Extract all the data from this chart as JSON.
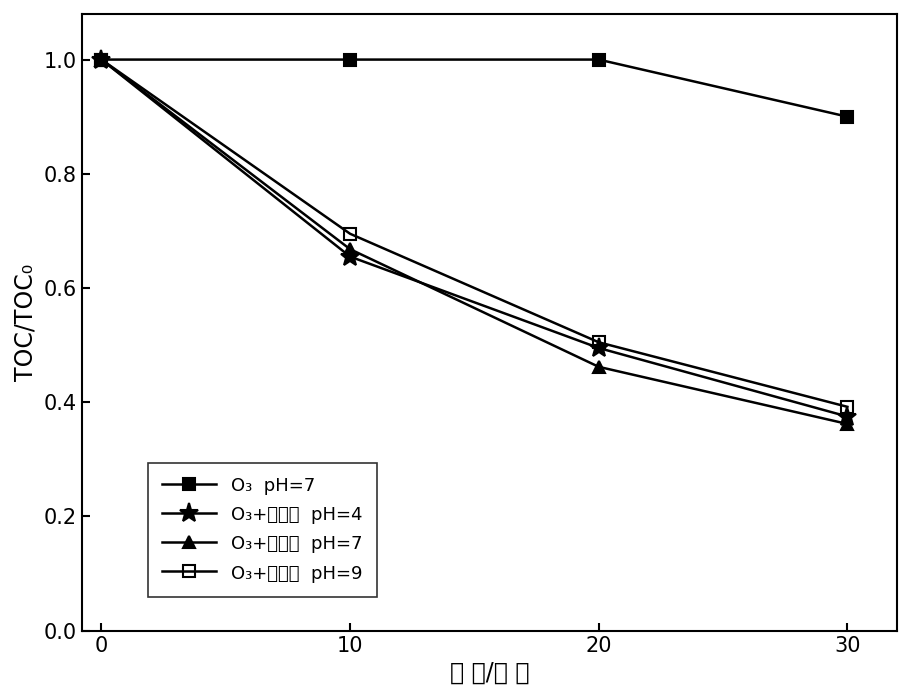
{
  "x": [
    0,
    10,
    20,
    30
  ],
  "series": [
    {
      "label_parts": [
        "O",
        "3",
        "  pH=7"
      ],
      "y": [
        1.0,
        1.0,
        1.0,
        0.9
      ],
      "marker": "s",
      "marker_size": 9,
      "color": "#000000",
      "linestyle": "-",
      "linewidth": 1.8,
      "fillstyle": "full"
    },
    {
      "label_parts": [
        "O",
        "3",
        "+催化剂  pH=4"
      ],
      "y": [
        1.0,
        0.655,
        0.495,
        0.375
      ],
      "marker": "*",
      "marker_size": 14,
      "color": "#000000",
      "linestyle": "-",
      "linewidth": 1.8,
      "fillstyle": "full"
    },
    {
      "label_parts": [
        "O",
        "3",
        "+催化剂  pH=7"
      ],
      "y": [
        1.0,
        0.668,
        0.462,
        0.362
      ],
      "marker": "^",
      "marker_size": 9,
      "color": "#000000",
      "linestyle": "-",
      "linewidth": 1.8,
      "fillstyle": "full"
    },
    {
      "label_parts": [
        "O",
        "3",
        "+催化剂  pH=9"
      ],
      "y": [
        1.0,
        0.695,
        0.505,
        0.392
      ],
      "marker": "s",
      "marker_size": 9,
      "color": "#000000",
      "linestyle": "-",
      "linewidth": 1.8,
      "fillstyle": "none"
    }
  ],
  "xlabel": "时 间/分 钟",
  "ylabel": "TOC/TOC₀",
  "xlim": [
    -0.8,
    32
  ],
  "ylim": [
    0.0,
    1.08
  ],
  "yticks": [
    0.0,
    0.2,
    0.4,
    0.6,
    0.8,
    1.0
  ],
  "xticks": [
    0,
    10,
    20,
    30
  ],
  "background_color": "#ffffff",
  "axis_fontsize": 17,
  "tick_fontsize": 15,
  "legend_fontsize": 13
}
